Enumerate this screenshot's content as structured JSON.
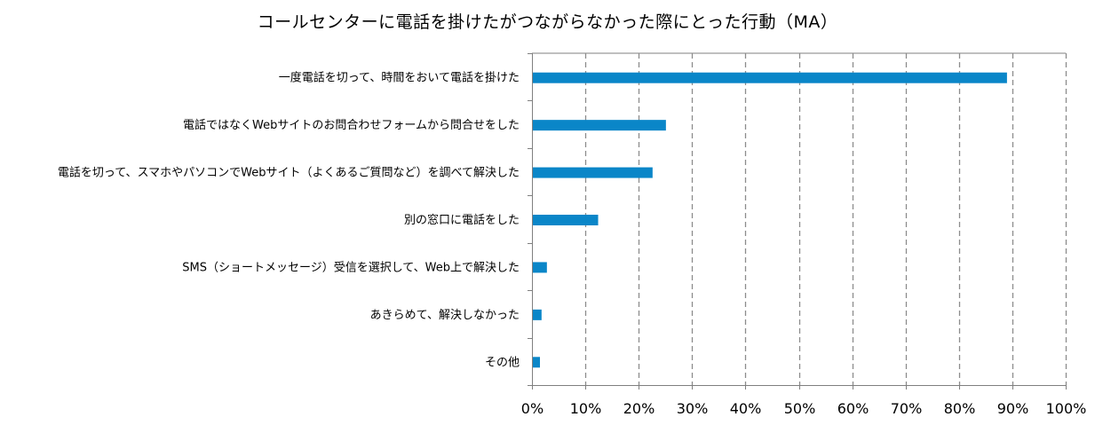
{
  "chart_data": {
    "type": "bar",
    "orientation": "horizontal",
    "title": "コールセンターに電話を掛けたがつながらなかった際にとった行動（MA）",
    "categories": [
      "一度電話を切って、時間をおいて電話を掛けた",
      "電話ではなくWebサイトのお問合わせフォームから問合せをした",
      "電話を切って、スマホやパソコンでWebサイト（よくあるご質問など）を調べて解決した",
      "別の窓口に電話をした",
      "SMS（ショートメッセージ）受信を選択して、Web上で解決した",
      "あきらめて、解決しなかった",
      "その他"
    ],
    "values": [
      89,
      25.1,
      22.6,
      12.4,
      2.8,
      1.8,
      1.5
    ],
    "xlim": [
      0,
      100
    ],
    "x_ticks": [
      "0%",
      "10%",
      "20%",
      "30%",
      "40%",
      "50%",
      "60%",
      "70%",
      "80%",
      "90%",
      "100%"
    ],
    "grid": "vertical-dashed",
    "legend": "none",
    "bar_color": "#0a86c8",
    "grid_color": "#8c8c8c",
    "axis_color": "#7f7f7f"
  }
}
